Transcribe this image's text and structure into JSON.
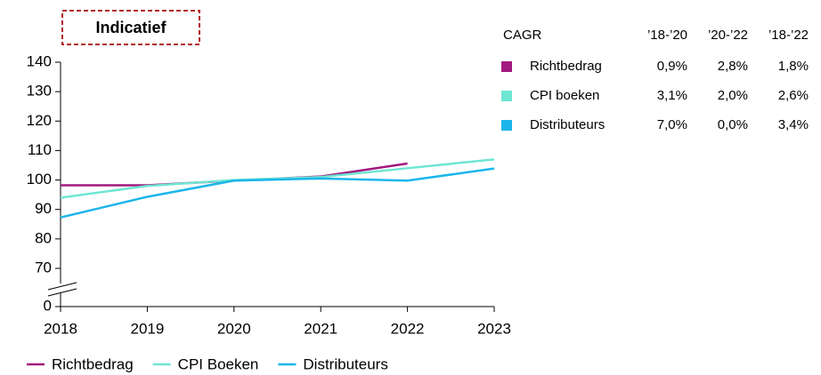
{
  "chart_data": {
    "type": "line",
    "annotation": "Indicatief",
    "x": [
      2018,
      2019,
      2020,
      2021,
      2022,
      2023
    ],
    "xlim": [
      2018,
      2023
    ],
    "xticks": [
      2018,
      2019,
      2020,
      2021,
      2022,
      2023
    ],
    "ylim": [
      0,
      140
    ],
    "yticks": [
      0,
      70,
      80,
      90,
      100,
      110,
      120,
      130,
      140
    ],
    "y_break": [
      0,
      70
    ],
    "legend": "bottom",
    "series": [
      {
        "name": "Richtbedrag",
        "color": "#a2197f",
        "values": [
          98.2,
          98.2,
          99.8,
          101.2,
          105.6,
          null
        ]
      },
      {
        "name": "CPI Boeken",
        "color": "#6fe6d3",
        "values": [
          94,
          98,
          100,
          101,
          104,
          107
        ]
      },
      {
        "name": "Distributeurs",
        "color": "#1bb6ea",
        "values": [
          87.3,
          94.3,
          99.8,
          100.5,
          99.8,
          103.9
        ]
      }
    ],
    "table": {
      "header": [
        "CAGR",
        "’18-’20",
        "’20-’22",
        "’18-’22"
      ],
      "rows": [
        [
          "Richtbedrag",
          "0,9%",
          "2,8%",
          "1,8%"
        ],
        [
          "CPI boeken",
          "3,1%",
          "2,0%",
          "2,6%"
        ],
        [
          "Distributeurs",
          "7,0%",
          "0,0%",
          "3,4%"
        ]
      ]
    }
  }
}
